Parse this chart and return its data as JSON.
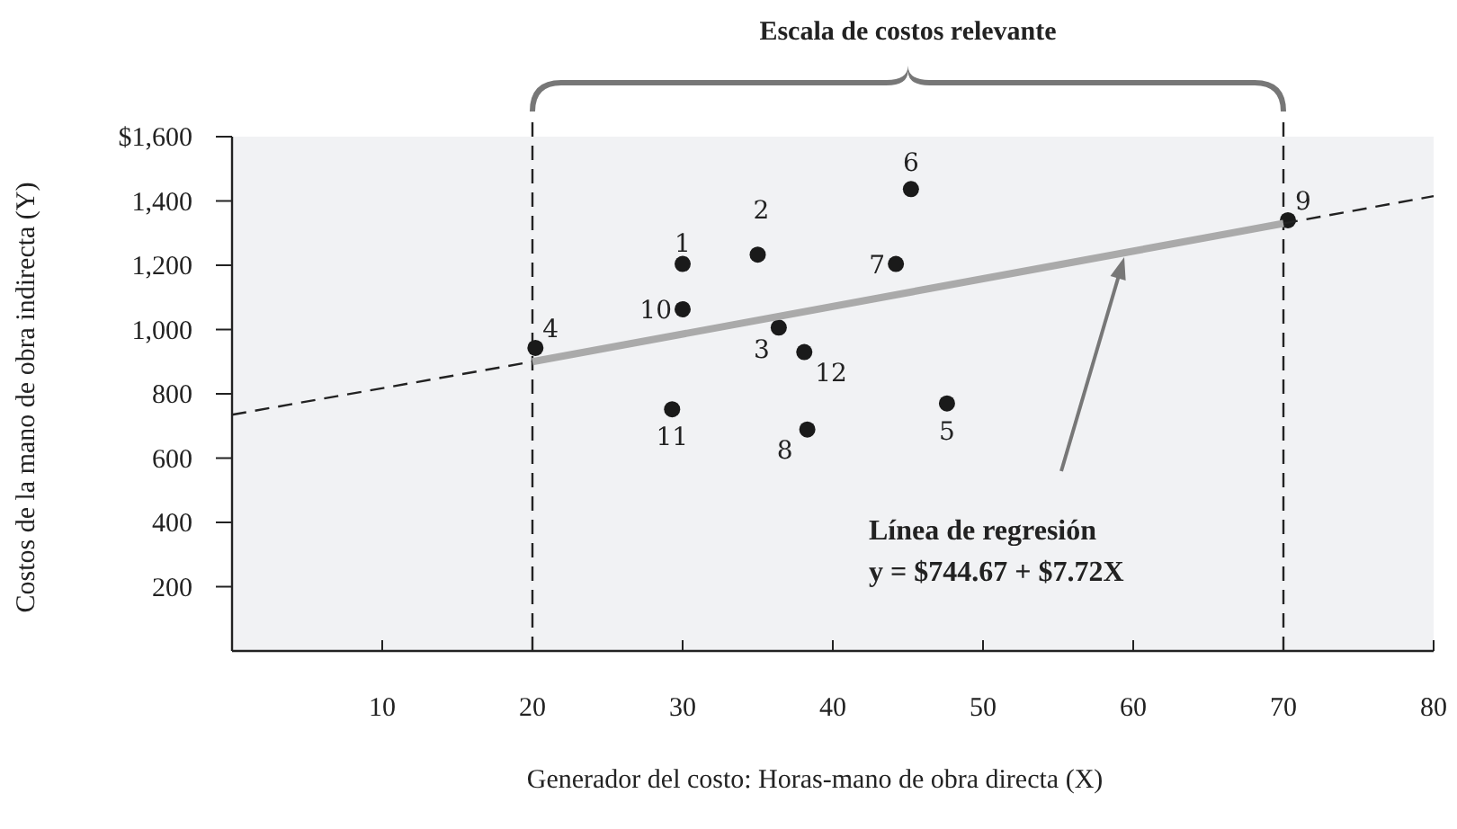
{
  "chart_data": {
    "type": "scatter",
    "xlabel": "Generador del costo: Horas-mano de obra directa (X)",
    "ylabel": "Costos de la mano de obra indirecta (Y)",
    "xlim": [
      0,
      80
    ],
    "ylim": [
      0,
      1600
    ],
    "xticks": [
      10,
      20,
      30,
      40,
      50,
      60,
      70,
      80
    ],
    "yticks": [
      {
        "value": 200,
        "label": "200"
      },
      {
        "value": 400,
        "label": "400"
      },
      {
        "value": 600,
        "label": "600"
      },
      {
        "value": 800,
        "label": "800"
      },
      {
        "value": 1000,
        "label": "1,000"
      },
      {
        "value": 1200,
        "label": "1,200"
      },
      {
        "value": 1400,
        "label": "1,400"
      },
      {
        "value": 1600,
        "label": "$1,600"
      }
    ],
    "grid": false,
    "series": [
      {
        "color": "#1a1a1a",
        "marker": "circle",
        "x": [
          30,
          35,
          36.4,
          20.2,
          47.6,
          45.2,
          44.2,
          38.3,
          70.3,
          30,
          29.3,
          38.1
        ],
        "values": [
          1204,
          1233,
          1006,
          943,
          770,
          1437,
          1204,
          689,
          1340,
          1063,
          752,
          930
        ]
      },
      {
        "type": "line",
        "color": "#222222",
        "line_style": "dashed",
        "x": [
          0,
          20
        ],
        "values": [
          735,
          900
        ]
      },
      {
        "type": "line",
        "color": "#aaaaaa",
        "line_style": "solid",
        "x": [
          20,
          70
        ],
        "values": [
          900,
          1330
        ]
      },
      {
        "type": "line",
        "color": "#222222",
        "line_style": "dashed",
        "x": [
          70,
          80
        ],
        "values": [
          1330,
          1415
        ]
      }
    ],
    "ref_lines": [
      {
        "axis": "x",
        "value": 20,
        "line_style": "dashed",
        "color": "#222222"
      },
      {
        "axis": "x",
        "value": 70,
        "line_style": "dashed",
        "color": "#222222"
      }
    ],
    "annotations": [
      "Escala de costos relevante",
      "Línea de regresión",
      "y = $744.67 + $7.72X",
      {
        "text": "1",
        "x": 30,
        "y": 1204
      },
      {
        "text": "2",
        "x": 35,
        "y": 1233
      },
      {
        "text": "3",
        "x": 36.4,
        "y": 1006
      },
      {
        "text": "4",
        "x": 20.2,
        "y": 943
      },
      {
        "text": "5",
        "x": 47.6,
        "y": 770
      },
      {
        "text": "6",
        "x": 45.2,
        "y": 1437
      },
      {
        "text": "7",
        "x": 44.2,
        "y": 1204
      },
      {
        "text": "8",
        "x": 38.3,
        "y": 689
      },
      {
        "text": "9",
        "x": 70.3,
        "y": 1340
      },
      {
        "text": "10",
        "x": 30,
        "y": 1063
      },
      {
        "text": "11",
        "x": 29.3,
        "y": 752
      },
      {
        "text": "12",
        "x": 38.1,
        "y": 930
      }
    ]
  }
}
